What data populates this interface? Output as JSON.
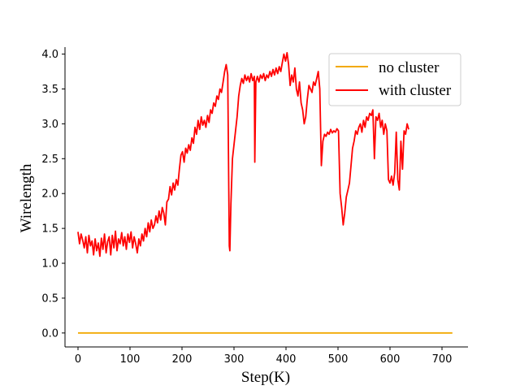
{
  "chart_data": {
    "type": "line",
    "title": "",
    "xlabel": "Step(K)",
    "ylabel": "Wirelength",
    "xlim": [
      -25,
      750
    ],
    "ylim": [
      -0.2,
      4.1
    ],
    "xticks": [
      0,
      100,
      200,
      300,
      400,
      500,
      600,
      700
    ],
    "yticks": [
      0.0,
      0.5,
      1.0,
      1.5,
      2.0,
      2.5,
      3.0,
      3.5,
      4.0
    ],
    "xtick_labels": [
      "0",
      "100",
      "200",
      "300",
      "400",
      "500",
      "600",
      "700"
    ],
    "ytick_labels": [
      "0.0",
      "0.5",
      "1.0",
      "1.5",
      "2.0",
      "2.5",
      "3.0",
      "3.5",
      "4.0"
    ],
    "grid": false,
    "legend_position": "top-right",
    "series": [
      {
        "name": "no cluster",
        "color": "#f2a900",
        "points": [
          [
            0,
            0.0
          ],
          [
            720,
            0.0
          ]
        ]
      },
      {
        "name": "with cluster",
        "color": "#ff0000",
        "points": [
          [
            0,
            1.45
          ],
          [
            3,
            1.28
          ],
          [
            6,
            1.42
          ],
          [
            9,
            1.33
          ],
          [
            12,
            1.22
          ],
          [
            15,
            1.38
          ],
          [
            18,
            1.15
          ],
          [
            21,
            1.4
          ],
          [
            24,
            1.25
          ],
          [
            27,
            1.32
          ],
          [
            30,
            1.12
          ],
          [
            33,
            1.35
          ],
          [
            36,
            1.18
          ],
          [
            39,
            1.29
          ],
          [
            42,
            1.1
          ],
          [
            45,
            1.36
          ],
          [
            48,
            1.2
          ],
          [
            51,
            1.42
          ],
          [
            54,
            1.15
          ],
          [
            57,
            1.31
          ],
          [
            60,
            1.38
          ],
          [
            63,
            1.12
          ],
          [
            66,
            1.4
          ],
          [
            69,
            1.22
          ],
          [
            72,
            1.46
          ],
          [
            75,
            1.18
          ],
          [
            78,
            1.35
          ],
          [
            81,
            1.28
          ],
          [
            84,
            1.44
          ],
          [
            87,
            1.25
          ],
          [
            90,
            1.38
          ],
          [
            93,
            1.2
          ],
          [
            96,
            1.42
          ],
          [
            99,
            1.3
          ],
          [
            102,
            1.45
          ],
          [
            105,
            1.22
          ],
          [
            108,
            1.38
          ],
          [
            111,
            1.28
          ],
          [
            114,
            1.15
          ],
          [
            117,
            1.35
          ],
          [
            120,
            1.25
          ],
          [
            123,
            1.42
          ],
          [
            126,
            1.32
          ],
          [
            129,
            1.5
          ],
          [
            132,
            1.38
          ],
          [
            135,
            1.58
          ],
          [
            138,
            1.45
          ],
          [
            141,
            1.62
          ],
          [
            144,
            1.5
          ],
          [
            147,
            1.55
          ],
          [
            150,
            1.68
          ],
          [
            153,
            1.58
          ],
          [
            156,
            1.75
          ],
          [
            159,
            1.62
          ],
          [
            162,
            1.8
          ],
          [
            165,
            1.72
          ],
          [
            168,
            1.55
          ],
          [
            171,
            1.88
          ],
          [
            174,
            1.92
          ],
          [
            177,
            2.1
          ],
          [
            180,
            1.98
          ],
          [
            183,
            2.15
          ],
          [
            186,
            2.05
          ],
          [
            189,
            2.2
          ],
          [
            192,
            2.12
          ],
          [
            195,
            2.35
          ],
          [
            198,
            2.55
          ],
          [
            201,
            2.6
          ],
          [
            204,
            2.45
          ],
          [
            207,
            2.65
          ],
          [
            210,
            2.58
          ],
          [
            213,
            2.7
          ],
          [
            216,
            2.62
          ],
          [
            219,
            2.8
          ],
          [
            222,
            2.72
          ],
          [
            225,
            2.95
          ],
          [
            228,
            2.85
          ],
          [
            231,
            3.05
          ],
          [
            234,
            2.92
          ],
          [
            237,
            3.1
          ],
          [
            240,
            2.98
          ],
          [
            243,
            3.05
          ],
          [
            246,
            2.95
          ],
          [
            249,
            3.12
          ],
          [
            252,
            3.02
          ],
          [
            255,
            3.2
          ],
          [
            258,
            3.15
          ],
          [
            261,
            3.3
          ],
          [
            264,
            3.25
          ],
          [
            267,
            3.4
          ],
          [
            270,
            3.35
          ],
          [
            273,
            3.5
          ],
          [
            276,
            3.45
          ],
          [
            279,
            3.6
          ],
          [
            282,
            3.75
          ],
          [
            285,
            3.85
          ],
          [
            288,
            3.7
          ],
          [
            291,
            1.25
          ],
          [
            292,
            1.18
          ],
          [
            294,
            1.85
          ],
          [
            297,
            2.5
          ],
          [
            300,
            2.7
          ],
          [
            303,
            2.9
          ],
          [
            306,
            3.1
          ],
          [
            309,
            3.4
          ],
          [
            312,
            3.55
          ],
          [
            315,
            3.65
          ],
          [
            318,
            3.58
          ],
          [
            321,
            3.7
          ],
          [
            324,
            3.62
          ],
          [
            327,
            3.68
          ],
          [
            330,
            3.6
          ],
          [
            333,
            3.72
          ],
          [
            336,
            3.62
          ],
          [
            339,
            3.68
          ],
          [
            340,
            2.45
          ],
          [
            342,
            3.6
          ],
          [
            345,
            3.68
          ],
          [
            348,
            3.6
          ],
          [
            351,
            3.7
          ],
          [
            354,
            3.65
          ],
          [
            357,
            3.72
          ],
          [
            360,
            3.62
          ],
          [
            363,
            3.7
          ],
          [
            366,
            3.66
          ],
          [
            369,
            3.75
          ],
          [
            372,
            3.68
          ],
          [
            375,
            3.78
          ],
          [
            378,
            3.7
          ],
          [
            381,
            3.8
          ],
          [
            384,
            3.72
          ],
          [
            387,
            3.82
          ],
          [
            390,
            3.75
          ],
          [
            393,
            3.88
          ],
          [
            396,
            4.0
          ],
          [
            399,
            3.9
          ],
          [
            402,
            4.02
          ],
          [
            405,
            3.85
          ],
          [
            408,
            3.55
          ],
          [
            411,
            3.7
          ],
          [
            414,
            3.6
          ],
          [
            417,
            3.8
          ],
          [
            420,
            3.5
          ],
          [
            423,
            3.4
          ],
          [
            426,
            3.6
          ],
          [
            429,
            3.3
          ],
          [
            432,
            3.2
          ],
          [
            435,
            3.0
          ],
          [
            438,
            3.1
          ],
          [
            441,
            3.35
          ],
          [
            444,
            3.55
          ],
          [
            447,
            3.5
          ],
          [
            450,
            3.45
          ],
          [
            453,
            3.6
          ],
          [
            456,
            3.55
          ],
          [
            459,
            3.65
          ],
          [
            462,
            3.75
          ],
          [
            465,
            3.5
          ],
          [
            468,
            2.4
          ],
          [
            471,
            2.75
          ],
          [
            474,
            2.85
          ],
          [
            477,
            2.82
          ],
          [
            480,
            2.88
          ],
          [
            483,
            2.85
          ],
          [
            486,
            2.92
          ],
          [
            489,
            2.87
          ],
          [
            492,
            2.9
          ],
          [
            495,
            2.88
          ],
          [
            498,
            2.93
          ],
          [
            501,
            2.9
          ],
          [
            504,
            2.0
          ],
          [
            507,
            1.8
          ],
          [
            510,
            1.55
          ],
          [
            513,
            1.72
          ],
          [
            516,
            1.95
          ],
          [
            519,
            2.05
          ],
          [
            522,
            2.15
          ],
          [
            525,
            2.4
          ],
          [
            528,
            2.65
          ],
          [
            531,
            2.75
          ],
          [
            534,
            2.9
          ],
          [
            537,
            2.85
          ],
          [
            540,
            2.95
          ],
          [
            543,
            3.0
          ],
          [
            546,
            2.88
          ],
          [
            549,
            3.05
          ],
          [
            552,
            2.95
          ],
          [
            555,
            3.1
          ],
          [
            558,
            3.05
          ],
          [
            561,
            3.15
          ],
          [
            564,
            3.12
          ],
          [
            567,
            3.2
          ],
          [
            570,
            2.5
          ],
          [
            573,
            3.1
          ],
          [
            576,
            3.05
          ],
          [
            579,
            3.15
          ],
          [
            582,
            2.95
          ],
          [
            585,
            3.05
          ],
          [
            588,
            2.85
          ],
          [
            591,
            3.0
          ],
          [
            594,
            2.9
          ],
          [
            597,
            2.2
          ],
          [
            600,
            2.15
          ],
          [
            603,
            2.25
          ],
          [
            606,
            2.12
          ],
          [
            609,
            2.3
          ],
          [
            612,
            2.88
          ],
          [
            615,
            2.2
          ],
          [
            618,
            2.05
          ],
          [
            621,
            2.75
          ],
          [
            624,
            2.35
          ],
          [
            627,
            2.9
          ],
          [
            630,
            2.85
          ],
          [
            633,
            3.0
          ],
          [
            636,
            2.92
          ]
        ]
      }
    ]
  }
}
